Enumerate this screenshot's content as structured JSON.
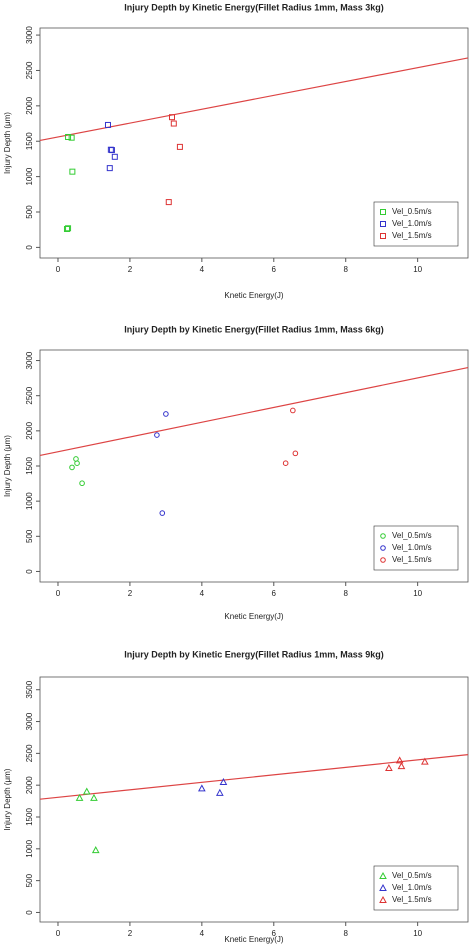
{
  "chart_data": [
    {
      "type": "scatter",
      "title": "Injury Depth by Kinetic Energy(Fillet Radius 1mm, Mass 3kg)",
      "x_label": "Knetic Energy(J)",
      "y_label": "Injury Depth (μm)",
      "marker": "square",
      "legend": "bottom-right",
      "xlim": [
        -0.5,
        11.4
      ],
      "ylim": [
        -150,
        3100
      ],
      "xticks": [
        0,
        2,
        4,
        6,
        8,
        10
      ],
      "yticks": [
        0,
        500,
        1000,
        1500,
        2000,
        2500,
        3000
      ],
      "series": [
        {
          "name": "Vel_0.5m/s",
          "color": "#33cc33",
          "x": [
            0.28,
            0.38,
            0.4,
            0.25,
            0.28
          ],
          "values": [
            1560,
            1550,
            1070,
            260,
            270
          ]
        },
        {
          "name": "Vel_1.0m/s",
          "color": "#3333cc",
          "x": [
            1.39,
            1.47,
            1.5,
            1.58,
            1.44
          ],
          "values": [
            1730,
            1380,
            1375,
            1280,
            1120
          ]
        },
        {
          "name": "Vel_1.5m/s",
          "color": "#dd3333",
          "x": [
            3.17,
            3.22,
            3.39,
            3.08
          ],
          "values": [
            1840,
            1750,
            1420,
            640
          ]
        }
      ],
      "trend": {
        "color": "#dd4444",
        "x": [
          -0.5,
          11.4
        ],
        "values": [
          1511,
          2677
        ]
      }
    },
    {
      "type": "scatter",
      "title": "Injury Depth by Kinetic Energy(Fillet Radius 1mm, Mass 6kg)",
      "x_label": "Knetic Energy(J)",
      "y_label": "Injury Depth (μm)",
      "marker": "circle",
      "legend": "bottom-right",
      "xlim": [
        -0.5,
        11.4
      ],
      "ylim": [
        -150,
        3150
      ],
      "xticks": [
        0,
        2,
        4,
        6,
        8,
        10
      ],
      "yticks": [
        0,
        500,
        1000,
        1500,
        2000,
        2500,
        3000
      ],
      "series": [
        {
          "name": "Vel_0.5m/s",
          "color": "#33cc33",
          "x": [
            0.5,
            0.53,
            0.39,
            0.67
          ],
          "values": [
            1600,
            1540,
            1480,
            1255
          ]
        },
        {
          "name": "Vel_1.0m/s",
          "color": "#3333cc",
          "x": [
            3.0,
            2.75,
            2.9
          ],
          "values": [
            2240,
            1940,
            830
          ]
        },
        {
          "name": "Vel_1.5m/s",
          "color": "#dd3333",
          "x": [
            6.53,
            6.6,
            6.33
          ],
          "values": [
            2290,
            1680,
            1540
          ]
        }
      ],
      "trend": {
        "color": "#dd4444",
        "x": [
          -0.5,
          11.4
        ],
        "values": [
          1650,
          2900
        ]
      }
    },
    {
      "type": "scatter",
      "title": "Injury Depth by Kinetic Energy(Fillet Radius 1mm, Mass 9kg)",
      "x_label": "Knetic Energy(J)",
      "y_label": "Injury Depth (μm)",
      "marker": "triangle",
      "legend": "bottom-right",
      "xlim": [
        -0.5,
        11.4
      ],
      "ylim": [
        -150,
        3700
      ],
      "xticks": [
        0,
        2,
        4,
        6,
        8,
        10
      ],
      "yticks": [
        0,
        500,
        1000,
        1500,
        2000,
        2500,
        3000,
        3500
      ],
      "series": [
        {
          "name": "Vel_0.5m/s",
          "color": "#33cc33",
          "x": [
            0.6,
            0.8,
            1.0,
            1.05
          ],
          "values": [
            1800,
            1900,
            1800,
            980
          ]
        },
        {
          "name": "Vel_1.0m/s",
          "color": "#3333cc",
          "x": [
            4.0,
            4.5,
            4.6
          ],
          "values": [
            1950,
            1880,
            2050
          ]
        },
        {
          "name": "Vel_1.5m/s",
          "color": "#dd3333",
          "x": [
            9.2,
            9.55,
            9.5,
            10.2
          ],
          "values": [
            2270,
            2300,
            2390,
            2370
          ]
        }
      ],
      "trend": {
        "color": "#dd4444",
        "x": [
          -0.5,
          11.4
        ],
        "values": [
          1780,
          2480
        ]
      }
    }
  ]
}
